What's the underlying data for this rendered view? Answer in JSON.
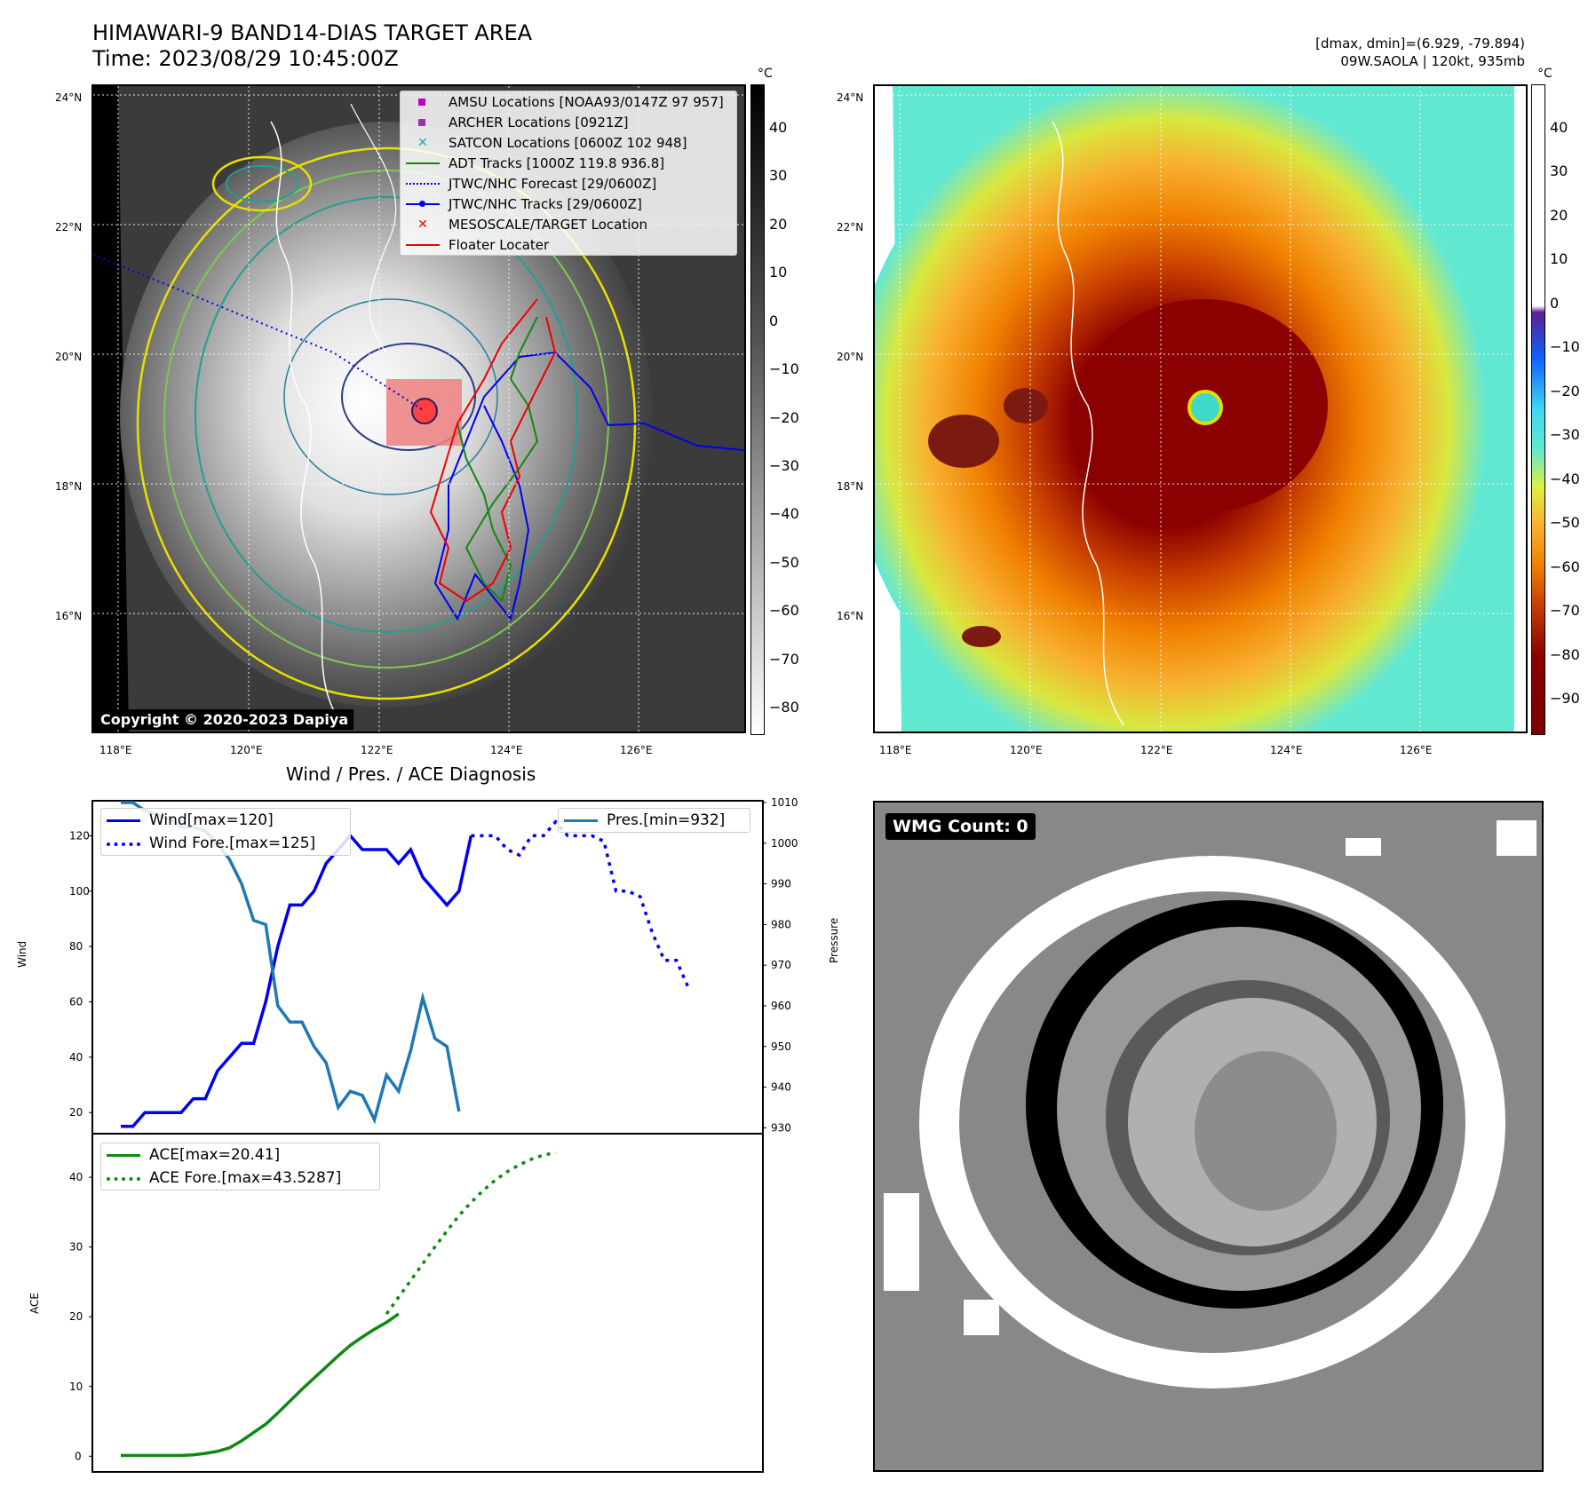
{
  "header": {
    "title_line1": "HIMAWARI-9 BAND14-DIAS TARGET AREA",
    "title_line2": "Time: 2023/08/29 10:45:00Z",
    "right_line1": "[dmax, dmin]=(6.929, -79.894)",
    "right_line2": "09W.SAOLA | 120kt, 935mb"
  },
  "map_axes": {
    "lat_labels": [
      "24°N",
      "22°N",
      "20°N",
      "18°N",
      "16°N"
    ],
    "lon_labels": [
      "118°E",
      "120°E",
      "122°E",
      "124°E",
      "126°E"
    ],
    "copyright": "Copyright © 2020-2023 Dapiya"
  },
  "colorbar_left": {
    "unit": "°C",
    "ticks": [
      "40",
      "30",
      "20",
      "10",
      "0",
      "−10",
      "−20",
      "−30",
      "−40",
      "−50",
      "−60",
      "−70",
      "−80"
    ]
  },
  "colorbar_right": {
    "unit": "°C",
    "ticks": [
      "40",
      "30",
      "20",
      "10",
      "0",
      "−10",
      "−20",
      "−30",
      "−40",
      "−50",
      "−60",
      "−70",
      "−80",
      "−90"
    ]
  },
  "map_legend": [
    {
      "label": "AMSU Locations [NOAA93/0147Z 97 957]",
      "marker": "square",
      "color": "#c000c0"
    },
    {
      "label": "ARCHER Locations [0921Z]",
      "marker": "square",
      "color": "#9b2fb0"
    },
    {
      "label": "SATCON Locations [0600Z 102 948]",
      "marker": "x",
      "color": "#18b0b0"
    },
    {
      "label": "ADT Tracks [1000Z 119.8 936.8]",
      "marker": "line",
      "color": "#118811"
    },
    {
      "label": "JTWC/NHC Forecast [29/0600Z]",
      "marker": "dotted",
      "color": "#0000ee"
    },
    {
      "label": "JTWC/NHC Tracks [29/0600Z]",
      "marker": "line-dot",
      "color": "#0000ee"
    },
    {
      "label": "MESOSCALE/TARGET Location",
      "marker": "x",
      "color": "#ee0000"
    },
    {
      "label": "Floater Locater",
      "marker": "line",
      "color": "#ee0000"
    }
  ],
  "diagnosis_title": "Wind / Pres. / ACE Diagnosis",
  "wmg_label": "WMG Count: 0",
  "chart_data": [
    {
      "type": "line",
      "title": "Wind / Pres. / ACE Diagnosis",
      "ylabel": "Wind",
      "y2label": "Pressure",
      "ylim": [
        13,
        132
      ],
      "y2lim": [
        929,
        1010
      ],
      "yticks": [
        20,
        40,
        60,
        80,
        100,
        120
      ],
      "y2ticks": [
        930,
        940,
        950,
        960,
        970,
        980,
        990,
        1000,
        1010
      ],
      "series": [
        {
          "name": "Wind[max=120]",
          "color": "#0000ee",
          "style": "solid",
          "axis": "left",
          "values": [
            15,
            15,
            20,
            20,
            20,
            20,
            25,
            25,
            35,
            40,
            45,
            45,
            60,
            80,
            95,
            95,
            100,
            110,
            115,
            120,
            115,
            115,
            115,
            110,
            115,
            105,
            100,
            95,
            100,
            120
          ]
        },
        {
          "name": "Wind Fore.[max=125]",
          "color": "#0000ee",
          "style": "dotted",
          "axis": "left",
          "values": [
            null,
            null,
            null,
            null,
            null,
            null,
            null,
            null,
            null,
            null,
            null,
            null,
            null,
            null,
            null,
            null,
            null,
            null,
            null,
            null,
            null,
            null,
            null,
            null,
            null,
            null,
            null,
            null,
            null,
            120,
            120,
            120,
            115,
            113,
            120,
            120,
            125,
            120,
            120,
            120,
            118,
            100,
            100,
            98,
            85,
            75,
            75,
            65
          ]
        },
        {
          "name": "Pres.[min=932]",
          "color": "#1f77b4",
          "style": "solid",
          "axis": "right",
          "values": [
            1010,
            1010,
            1008,
            1007,
            1006,
            1004,
            1004,
            1003,
            1000,
            996,
            990,
            981,
            980,
            960,
            956,
            956,
            950,
            946,
            935,
            939,
            938,
            932,
            943,
            939,
            949,
            962,
            952,
            950,
            934
          ]
        },
        {
          "name": "ACE[max=20.41]",
          "color": "#118811",
          "style": "solid",
          "axis": "ace",
          "values": [
            0.1,
            0.1,
            0.1,
            0.1,
            0.1,
            0.1,
            0.2,
            0.4,
            0.7,
            1.2,
            2.2,
            3.4,
            4.6,
            6.2,
            7.9,
            9.6,
            11.2,
            12.8,
            14.4,
            15.9,
            17.1,
            18.2,
            19.2,
            20.41
          ]
        }
      ]
    },
    {
      "type": "line",
      "ylabel": "ACE",
      "ylim": [
        -2,
        46
      ],
      "yticks": [
        0,
        10,
        20,
        30,
        40
      ],
      "series": [
        {
          "name": "ACE[max=20.41]",
          "color": "#118811",
          "style": "solid",
          "values": [
            0.1,
            0.1,
            0.1,
            0.1,
            0.1,
            0.1,
            0.2,
            0.4,
            0.7,
            1.2,
            2.2,
            3.4,
            4.6,
            6.2,
            7.9,
            9.6,
            11.2,
            12.8,
            14.4,
            15.9,
            17.1,
            18.2,
            19.2,
            20.41
          ]
        },
        {
          "name": "ACE Fore.[max=43.5287]",
          "color": "#118811",
          "style": "dotted",
          "values": [
            null,
            null,
            null,
            null,
            null,
            null,
            null,
            null,
            null,
            null,
            null,
            null,
            null,
            null,
            null,
            null,
            null,
            null,
            null,
            null,
            null,
            null,
            20.41,
            22.8,
            25.2,
            27.6,
            30.0,
            32.3,
            34.5,
            36.4,
            38.1,
            39.6,
            40.8,
            41.8,
            42.6,
            43.2,
            43.5287
          ]
        }
      ]
    }
  ]
}
